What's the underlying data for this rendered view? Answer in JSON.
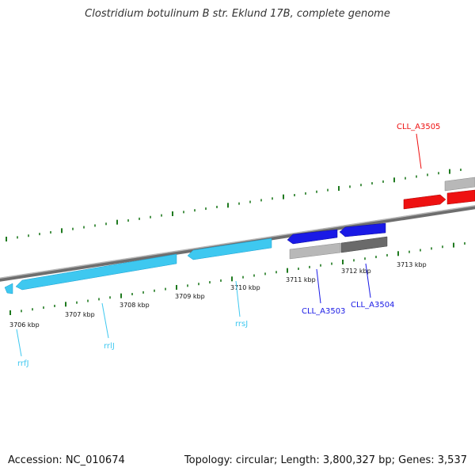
{
  "title": "Clostridium botulinum B str. Eklund 17B, complete genome",
  "footer": {
    "accession": "Accession: NC_010674",
    "stats": "Topology: circular; Length: 3,800,327 bp; Genes: 3,537"
  },
  "colors": {
    "backbone": "#8a8a8a",
    "tick": "#1f7a1f",
    "rna": "#3ec8f0",
    "gene_blue": "#1a1ae6",
    "gene_red": "#ee1111",
    "gene_grey": "#b0b0b0",
    "gene_darkgrey": "#6a6a6a"
  },
  "scale": {
    "ticks": [
      "3706 kbp",
      "3707 kbp",
      "3708 kbp",
      "3709 kbp",
      "3710 kbp",
      "3711 kbp",
      "3712 kbp",
      "3713 kbp"
    ]
  },
  "features": [
    {
      "name": "rrfJ",
      "type": "rRNA",
      "strand": "-",
      "color": "rna"
    },
    {
      "name": "rrlJ",
      "type": "rRNA",
      "strand": "-",
      "color": "rna"
    },
    {
      "name": "rrsJ",
      "type": "rRNA",
      "strand": "-",
      "color": "rna"
    },
    {
      "name": "CLL_A3503",
      "type": "CDS",
      "strand": "-",
      "color": "gene_blue"
    },
    {
      "name": "CLL_A3504",
      "type": "CDS",
      "strand": "-",
      "color": "gene_blue"
    },
    {
      "name": "CLL_A3505",
      "type": "CDS",
      "strand": "+",
      "color": "gene_red"
    }
  ]
}
